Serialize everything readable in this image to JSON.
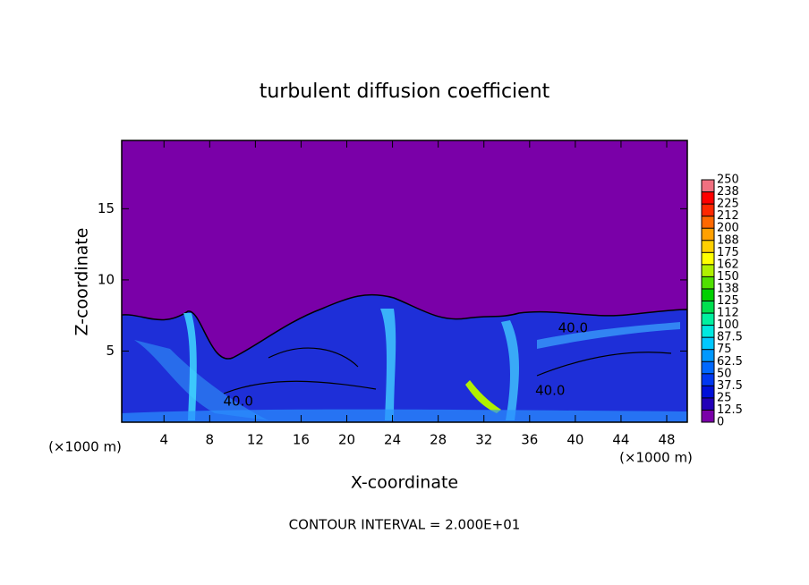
{
  "chart_data": {
    "type": "contour",
    "title": "turbulent diffusion coefficient",
    "x_label": "X-coordinate",
    "y_label": "Z-coordinate",
    "y_unit": "(×1000 m)",
    "x_unit": "(×1000 m)",
    "footnote": "CONTOUR INTERVAL = 2.000E+01",
    "xlim": [
      0.3,
      49.8
    ],
    "xticks": [
      4,
      8,
      12,
      16,
      20,
      24,
      28,
      32,
      36,
      40,
      44,
      48
    ],
    "ylim": [
      0,
      19.8
    ],
    "yticks": [
      5,
      10,
      15
    ],
    "contour_color": "#000000",
    "contour_labels": [
      {
        "text": "40.0",
        "x": 39.8,
        "z": 6.6
      },
      {
        "text": "40.0",
        "x": 10.5,
        "z": 1.45
      },
      {
        "text": "40.0",
        "x": 37.8,
        "z": 2.2
      }
    ],
    "colorbar": {
      "levels": [
        0,
        12.5,
        25,
        37.5,
        50,
        62.5,
        75,
        87.5,
        {
          "value": 100,
          "label": "100"
        },
        {
          "value": 112.5,
          "label": "112"
        },
        125,
        {
          "value": 137.5,
          "label": "138"
        },
        150,
        {
          "value": 162.5,
          "label": "162"
        },
        175,
        {
          "value": 187.5,
          "label": "188"
        },
        200,
        {
          "value": 212.5,
          "label": "212"
        },
        225,
        {
          "value": 237.5,
          "label": "238"
        },
        250
      ],
      "colors": [
        "#7a00a8",
        "#2200b8",
        "#0010d8",
        "#0038f0",
        "#0068ff",
        "#0098ff",
        "#00c8ff",
        "#00e8e0",
        "#00f0a0",
        "#00e050",
        "#00d000",
        "#50e000",
        "#b0f000",
        "#ffff00",
        "#ffd000",
        "#ffa000",
        "#ff6800",
        "#ff2800",
        "#ff0000",
        "#f07080"
      ]
    }
  }
}
